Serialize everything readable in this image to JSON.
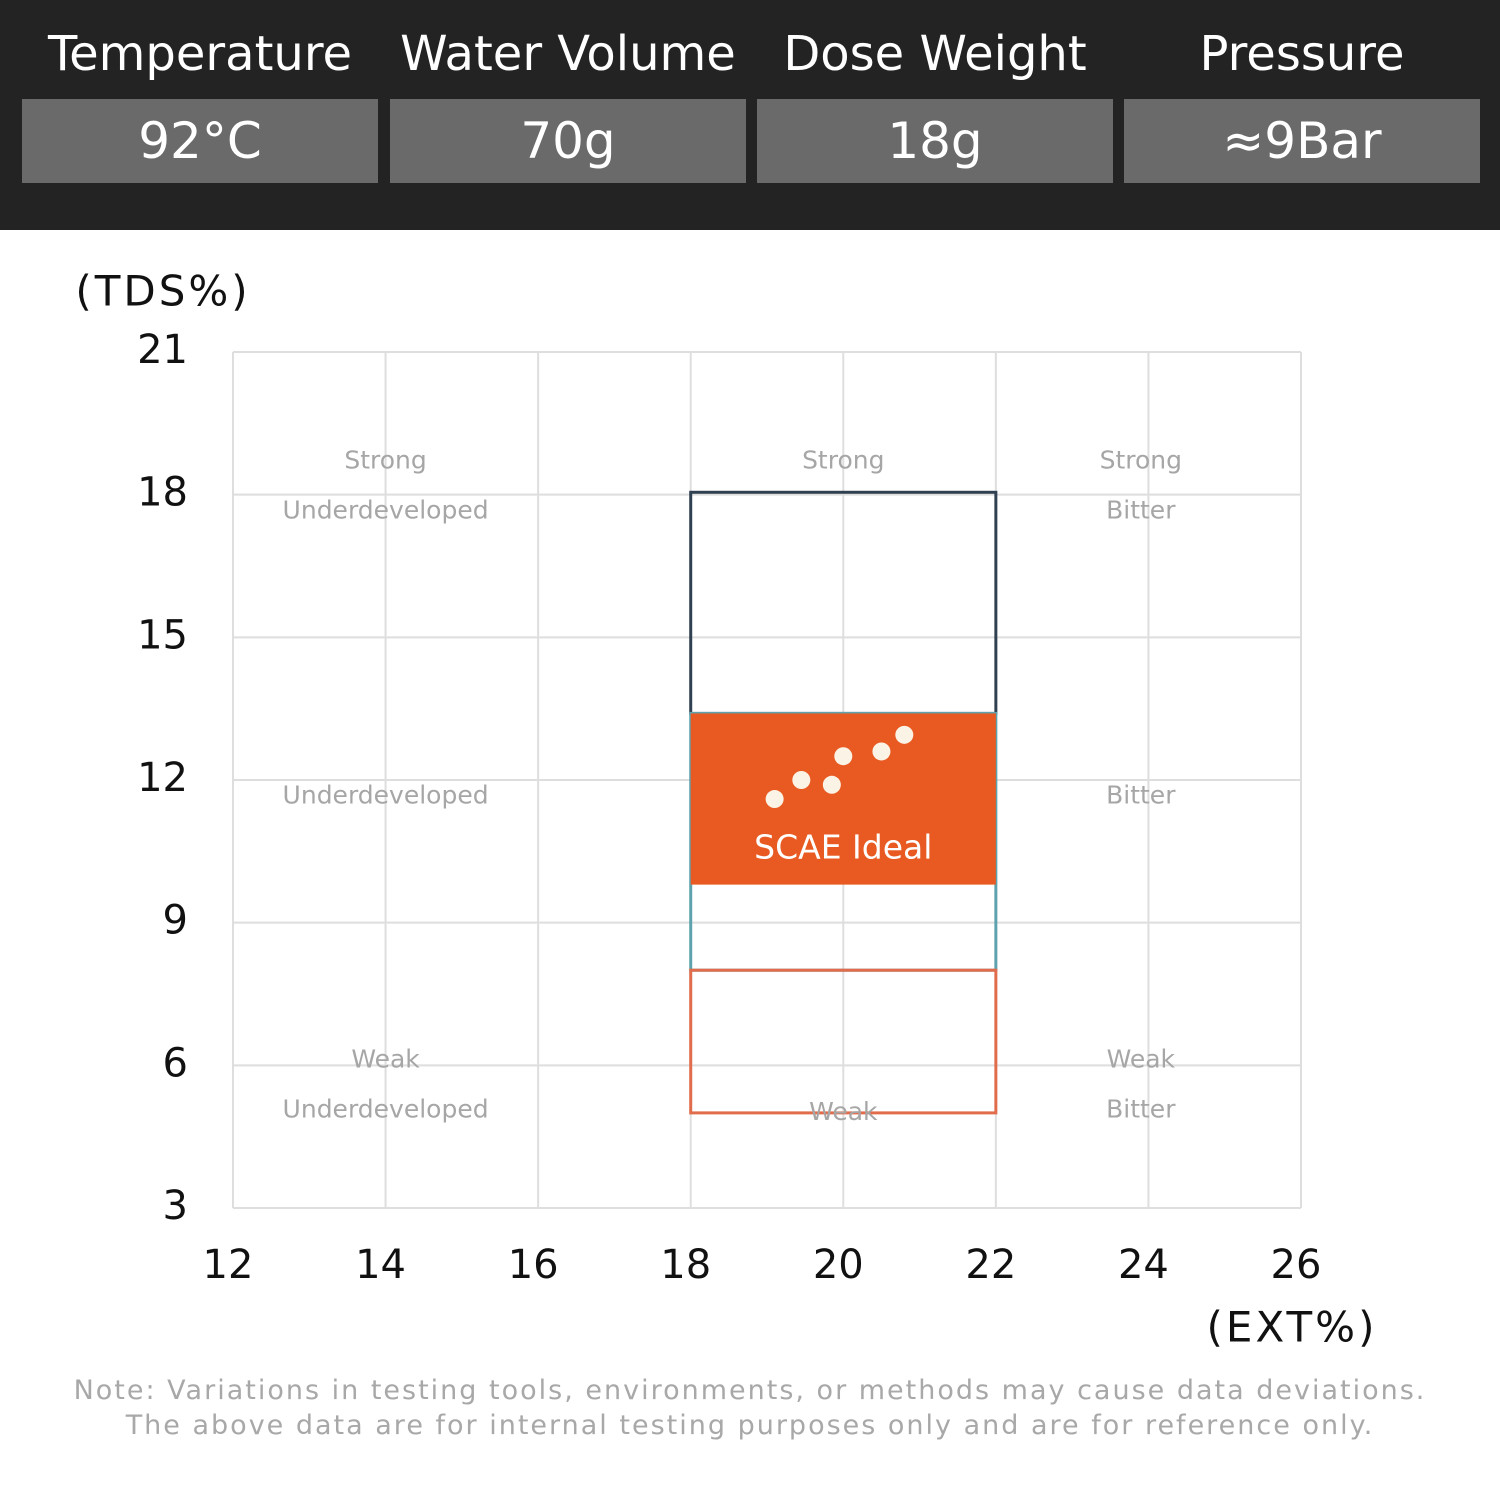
{
  "header": {
    "params": [
      {
        "label": "Temperature",
        "value": "92°C"
      },
      {
        "label": "Water Volume",
        "value": "70g"
      },
      {
        "label": "Dose Weight",
        "value": "18g"
      },
      {
        "label": "Pressure",
        "value": "≈9Bar"
      }
    ]
  },
  "chart_data": {
    "type": "scatter",
    "ylabel": "(TDS%)",
    "xlabel": "(EXT%)",
    "xlim": [
      12,
      26
    ],
    "ylim": [
      3,
      21
    ],
    "x_ticks": [
      12,
      14,
      16,
      18,
      20,
      22,
      24,
      26
    ],
    "y_ticks": [
      3,
      6,
      9,
      12,
      15,
      18,
      21
    ],
    "grid": true,
    "regions": [
      {
        "x": [
          18,
          22
        ],
        "y": [
          13.4,
          18.05
        ],
        "color": "#2f4050",
        "filled": false
      },
      {
        "x": [
          18,
          22
        ],
        "y": [
          8,
          13.4
        ],
        "color": "#5ea2ad",
        "filled": false
      },
      {
        "x": [
          18,
          22
        ],
        "y": [
          5,
          8
        ],
        "color": "#e06c4c",
        "filled": false
      },
      {
        "x": [
          18,
          22
        ],
        "y": [
          9.8,
          13.4
        ],
        "color": "#e85a21",
        "filled": true,
        "label": "SCAE Ideal"
      }
    ],
    "zone_labels": [
      {
        "x": 14,
        "y": 18.7,
        "text": "Strong"
      },
      {
        "x": 14,
        "y": 17.65,
        "text": "Underdeveloped"
      },
      {
        "x": 20,
        "y": 18.7,
        "text": "Strong"
      },
      {
        "x": 23.9,
        "y": 18.7,
        "text": "Strong"
      },
      {
        "x": 23.9,
        "y": 17.65,
        "text": "Bitter"
      },
      {
        "x": 14,
        "y": 11.65,
        "text": "Underdeveloped"
      },
      {
        "x": 23.9,
        "y": 11.65,
        "text": "Bitter"
      },
      {
        "x": 14,
        "y": 6.1,
        "text": "Weak"
      },
      {
        "x": 14,
        "y": 5.05,
        "text": "Underdeveloped"
      },
      {
        "x": 20,
        "y": 5.0,
        "text": "Weak"
      },
      {
        "x": 23.9,
        "y": 6.1,
        "text": "Weak"
      },
      {
        "x": 23.9,
        "y": 5.05,
        "text": "Bitter"
      }
    ],
    "points": [
      {
        "x": 19.1,
        "y": 11.6
      },
      {
        "x": 19.45,
        "y": 12.0
      },
      {
        "x": 19.85,
        "y": 11.9
      },
      {
        "x": 20.0,
        "y": 12.5
      },
      {
        "x": 20.5,
        "y": 12.6
      },
      {
        "x": 20.8,
        "y": 12.95
      }
    ],
    "point_color": "#fbf3e6"
  },
  "note": {
    "line1": "Note: Variations in testing tools, environments, or methods may cause data deviations.",
    "line2": "The above data are for internal testing purposes only and are for reference only."
  }
}
